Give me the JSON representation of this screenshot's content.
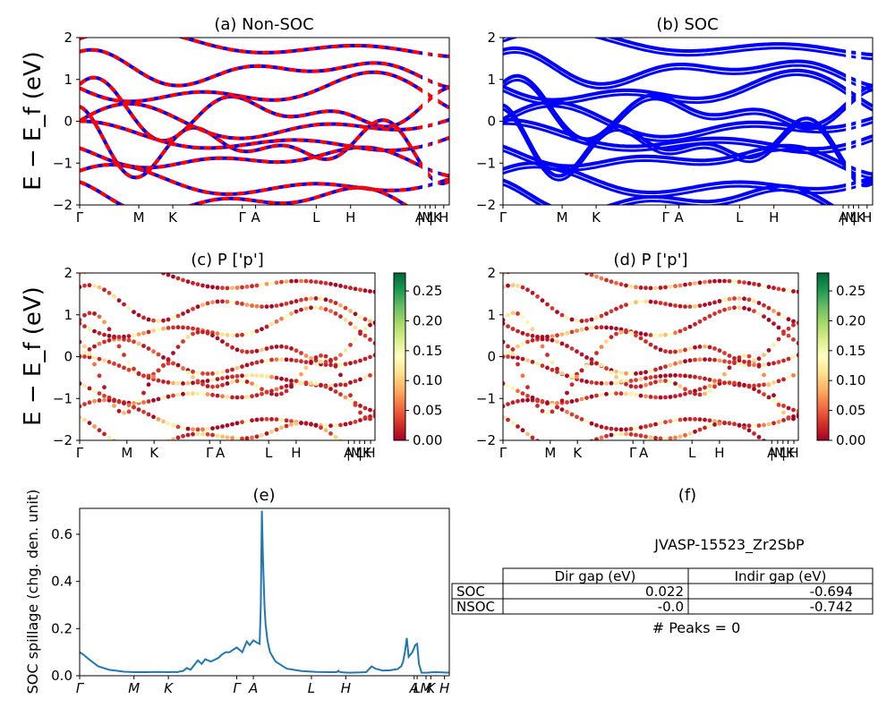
{
  "chart_data": [
    {
      "type": "line",
      "panel": "a",
      "title": "(a) Non-SOC",
      "ylabel": "E − E_f (eV)",
      "ylim": [
        -2,
        2
      ],
      "yticks": [
        "2",
        "1",
        "0",
        "−1",
        "−2"
      ],
      "xtick_labels": [
        "Γ",
        "M",
        "K",
        "Γ",
        "A",
        "L",
        "H",
        "A",
        "|M",
        "L",
        "|K",
        "H"
      ],
      "series": [
        {
          "name": "",
          "color": "#0000ff",
          "style": "solid",
          "y_at_gamma": [
            -0.1,
            -0.45,
            -0.9,
            -1.5,
            0.7,
            1.2,
            1.8
          ]
        },
        {
          "name": "",
          "color": "#ff0000",
          "style": "dashed",
          "y_at_gamma": [
            -0.1,
            -0.45,
            -0.9,
            -1.5,
            0.7,
            1.2,
            1.8
          ]
        }
      ]
    },
    {
      "type": "line",
      "panel": "b",
      "title": "(b) SOC",
      "ylim": [
        -2,
        2
      ],
      "yticks": [
        "2",
        "1",
        "0",
        "−1",
        "−2"
      ],
      "xtick_labels": [
        "Γ",
        "M",
        "K",
        "Γ",
        "A",
        "L",
        "H",
        "A",
        "|M",
        "L",
        "|K",
        "H"
      ],
      "series": [
        {
          "name": "",
          "color": "#0000ff",
          "style": "solid"
        }
      ]
    },
    {
      "type": "scatter",
      "panel": "c",
      "title": "(c)  P ['p']",
      "ylabel": "E − E_f (eV)",
      "ylim": [
        -2,
        2
      ],
      "yticks": [
        "2",
        "1",
        "0",
        "−1",
        "−2"
      ],
      "xtick_labels": [
        "Γ",
        "M",
        "K",
        "Γ",
        "A",
        "L",
        "H",
        "A",
        "|M",
        "L",
        "|K",
        "H"
      ],
      "colorbar_ticks": [
        "0.25",
        "0.20",
        "0.15",
        "0.10",
        "0.05",
        "0.00"
      ],
      "colorbar_range": [
        0,
        0.28
      ],
      "colormap": "RdYlGn"
    },
    {
      "type": "scatter",
      "panel": "d",
      "title": "(d) P ['p']",
      "ylim": [
        -2,
        2
      ],
      "yticks": [
        "2",
        "1",
        "0",
        "−1",
        "−2"
      ],
      "xtick_labels": [
        "Γ",
        "M",
        "K",
        "Γ",
        "A",
        "L",
        "H",
        "A",
        "|M",
        "L",
        "|K",
        "H"
      ],
      "colorbar_ticks": [
        "0.25",
        "0.20",
        "0.15",
        "0.10",
        "0.05",
        "0.00"
      ],
      "colorbar_range": [
        0,
        0.28
      ],
      "colormap": "RdYlGn"
    },
    {
      "type": "line",
      "panel": "e",
      "title": "(e)",
      "ylabel": "SOC spillage (chg. den. unit)",
      "ylim": [
        0,
        0.71
      ],
      "yticks": [
        "0.6",
        "0.4",
        "0.2",
        "0.0"
      ],
      "xtick_labels": [
        "Γ",
        "M",
        "K",
        "Γ",
        "A",
        "L",
        "H",
        "A",
        "L",
        "M",
        "K",
        "H"
      ],
      "series": [
        {
          "name": "",
          "color": "#1f77b4",
          "x": [
            0,
            0.01,
            0.025,
            0.05,
            0.08,
            0.12,
            0.15,
            0.18,
            0.21,
            0.24,
            0.255,
            0.265,
            0.27,
            0.28,
            0.29,
            0.3,
            0.31,
            0.32,
            0.33,
            0.34,
            0.355,
            0.375,
            0.385,
            0.395,
            0.405,
            0.425,
            0.44,
            0.452,
            0.46,
            0.47,
            0.48,
            0.487,
            0.49,
            0.493,
            0.496,
            0.5,
            0.503,
            0.508,
            0.515,
            0.53,
            0.56,
            0.6,
            0.64,
            0.68,
            0.695,
            0.7,
            0.7,
            0.71,
            0.73,
            0.76,
            0.775,
            0.79,
            0.8,
            0.82,
            0.84,
            0.86,
            0.87,
            0.875,
            0.88,
            0.885,
            0.89,
            0.9,
            0.908,
            0.913,
            0.918,
            0.925,
            0.94,
            0.96,
            0.98,
            0.995,
            1.0
          ],
          "values": [
            0.1,
            0.09,
            0.07,
            0.04,
            0.025,
            0.017,
            0.015,
            0.015,
            0.016,
            0.015,
            0.016,
            0.015,
            0.018,
            0.02,
            0.033,
            0.025,
            0.045,
            0.065,
            0.05,
            0.07,
            0.06,
            0.075,
            0.09,
            0.1,
            0.1,
            0.12,
            0.1,
            0.145,
            0.13,
            0.15,
            0.14,
            0.135,
            0.3,
            0.7,
            0.5,
            0.3,
            0.22,
            0.15,
            0.1,
            0.06,
            0.03,
            0.02,
            0.016,
            0.015,
            0.015,
            0.02,
            0.018,
            0.014,
            0.013,
            0.014,
            0.015,
            0.04,
            0.03,
            0.022,
            0.023,
            0.028,
            0.04,
            0.06,
            0.1,
            0.16,
            0.08,
            0.1,
            0.13,
            0.135,
            0.05,
            0.013,
            0.013,
            0.015,
            0.014,
            0.013,
            0.014
          ]
        }
      ]
    },
    {
      "type": "table",
      "panel": "f",
      "title": "(f)",
      "subtitle": "JVASP-15523_Zr2SbP",
      "columns": [
        "Dir gap (eV)",
        "Indir gap (eV)"
      ],
      "rows": [
        {
          "label": "SOC",
          "values": [
            "0.022",
            "-0.694"
          ]
        },
        {
          "label": "NSOC",
          "values": [
            "-0.0",
            "-0.742"
          ]
        }
      ],
      "footer": "# Peaks = 0"
    }
  ]
}
